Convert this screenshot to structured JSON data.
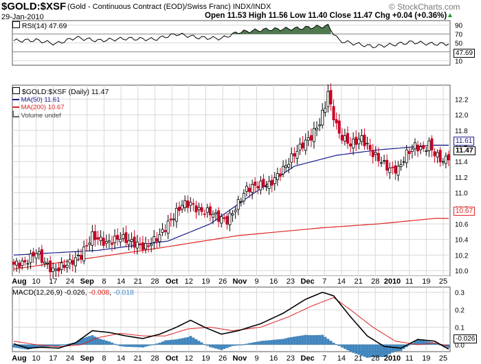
{
  "header": {
    "symbol": "$GOLD:$XSF",
    "description": "(Gold - Continuous Contract (EOD)/Swiss Franc) INDX/INDX",
    "watermark": "© StockCharts.com",
    "date": "29-Jan-2010",
    "ohlc": "Open 11.53  High 11.56  Low 11.40  Close 11.47  Chg +0.04 (+0.36%)",
    "change_arrow": "▲"
  },
  "colors": {
    "up": "#000000",
    "down": "#cc0022",
    "ma50": "#1a1a8c",
    "ma200": "#dd2222",
    "rsi_fill": "#4f7a4f",
    "macd_line": "#000000",
    "macd_signal": "#dd2222",
    "macd_hist": "#3f87c2",
    "grid": "#d8d8d8",
    "frame": "#555555"
  },
  "date_labels": [
    "Aug",
    "10",
    "17",
    "24",
    "Sep",
    "8",
    "14",
    "21",
    "28",
    "Oct",
    "12",
    "19",
    "26",
    "Nov",
    "9",
    "16",
    "23",
    "Dec",
    "7",
    "14",
    "21",
    "28",
    "2010",
    "11",
    "19",
    "25"
  ],
  "rsi": {
    "legend": "RSI(14) 47.69",
    "ticks": [
      "90",
      "70",
      "50",
      "30",
      "10"
    ],
    "last_label": "47.69"
  },
  "price": {
    "legend_main": "$GOLD:$XSF (Daily) 11.47",
    "legend_ma50": "MA(50) 11.61",
    "legend_ma200": "MA(200) 10.67",
    "legend_volume": "Volume undef",
    "ticks": [
      "12.2",
      "12.0",
      "11.8",
      "11.6",
      "11.4",
      "11.2",
      "11.0",
      "10.8",
      "10.6",
      "10.4",
      "10.2",
      "10.0"
    ],
    "tag_ma50": "11.61",
    "tag_close": "11.47",
    "tag_ma200": "10.67"
  },
  "macd": {
    "legend_prefix": "MACD(12,26,9)",
    "legend_macd": "-0.026",
    "legend_signal": "-0.008",
    "legend_hist": "-0.018",
    "ticks": [
      "0.3",
      "0.2",
      "0.1",
      "0.0"
    ],
    "last_label": "-0.026"
  },
  "chart_data": {
    "type": "candlestick",
    "title": "$GOLD:$XSF (Gold - Continuous Contract (EOD)/Swiss Franc) INDX/INDX",
    "price_ylim": [
      9.93,
      12.38
    ],
    "rsi_ylim": [
      0,
      100
    ],
    "macd_ylim": [
      -0.04,
      0.33
    ],
    "ma50_anchors": [
      [
        0,
        10.2
      ],
      [
        30,
        10.26
      ],
      [
        55,
        10.38
      ],
      [
        70,
        10.6
      ],
      [
        85,
        10.98
      ],
      [
        100,
        11.34
      ],
      [
        115,
        11.48
      ],
      [
        130,
        11.55
      ],
      [
        150,
        11.61
      ]
    ],
    "ma200_anchors": [
      [
        0,
        10.02
      ],
      [
        50,
        10.28
      ],
      [
        80,
        10.45
      ],
      [
        110,
        10.55
      ],
      [
        130,
        10.6
      ],
      [
        150,
        10.67
      ]
    ],
    "price_anchors": [
      [
        0,
        10.08
      ],
      [
        4,
        10.1
      ],
      [
        8,
        10.24
      ],
      [
        11,
        10.1
      ],
      [
        14,
        10.0
      ],
      [
        17,
        10.05
      ],
      [
        20,
        10.1
      ],
      [
        24,
        10.2
      ],
      [
        28,
        10.45
      ],
      [
        33,
        10.35
      ],
      [
        38,
        10.43
      ],
      [
        43,
        10.35
      ],
      [
        47,
        10.3
      ],
      [
        52,
        10.45
      ],
      [
        56,
        10.65
      ],
      [
        60,
        10.85
      ],
      [
        63,
        10.86
      ],
      [
        66,
        10.77
      ],
      [
        70,
        10.75
      ],
      [
        73,
        10.68
      ],
      [
        76,
        10.64
      ],
      [
        79,
        10.8
      ],
      [
        83,
        11.05
      ],
      [
        87,
        11.1
      ],
      [
        91,
        11.1
      ],
      [
        96,
        11.3
      ],
      [
        100,
        11.5
      ],
      [
        103,
        11.62
      ],
      [
        106,
        11.72
      ],
      [
        109,
        11.9
      ],
      [
        111,
        12.12
      ],
      [
        112,
        12.3
      ],
      [
        113,
        12.1
      ],
      [
        116,
        11.75
      ],
      [
        120,
        11.62
      ],
      [
        124,
        11.7
      ],
      [
        128,
        11.5
      ],
      [
        131,
        11.4
      ],
      [
        134,
        11.3
      ],
      [
        137,
        11.3
      ],
      [
        140,
        11.5
      ],
      [
        143,
        11.6
      ],
      [
        146,
        11.55
      ],
      [
        148,
        11.62
      ],
      [
        150,
        11.5
      ],
      [
        153,
        11.4
      ],
      [
        155,
        11.47
      ]
    ],
    "rsi_anchors": [
      [
        0,
        55
      ],
      [
        8,
        56
      ],
      [
        15,
        48
      ],
      [
        22,
        62
      ],
      [
        30,
        55
      ],
      [
        40,
        60
      ],
      [
        50,
        58
      ],
      [
        58,
        70
      ],
      [
        66,
        62
      ],
      [
        74,
        60
      ],
      [
        80,
        74
      ],
      [
        90,
        80
      ],
      [
        100,
        82
      ],
      [
        108,
        86
      ],
      [
        112,
        88
      ],
      [
        116,
        55
      ],
      [
        120,
        50
      ],
      [
        128,
        42
      ],
      [
        135,
        46
      ],
      [
        142,
        52
      ],
      [
        148,
        48
      ],
      [
        155,
        47.69
      ]
    ],
    "macd_anchors": [
      [
        0,
        0.005
      ],
      [
        5,
        -0.02
      ],
      [
        10,
        -0.015
      ],
      [
        16,
        -0.02
      ],
      [
        22,
        0.01
      ],
      [
        28,
        0.08
      ],
      [
        34,
        0.07
      ],
      [
        40,
        0.05
      ],
      [
        46,
        0.035
      ],
      [
        52,
        0.06
      ],
      [
        58,
        0.1
      ],
      [
        63,
        0.14
      ],
      [
        68,
        0.1
      ],
      [
        74,
        0.06
      ],
      [
        80,
        0.08
      ],
      [
        88,
        0.12
      ],
      [
        96,
        0.18
      ],
      [
        104,
        0.26
      ],
      [
        110,
        0.3
      ],
      [
        114,
        0.28
      ],
      [
        120,
        0.16
      ],
      [
        126,
        0.05
      ],
      [
        132,
        -0.01
      ],
      [
        138,
        -0.02
      ],
      [
        144,
        0.03
      ],
      [
        150,
        0.02
      ],
      [
        155,
        -0.026
      ]
    ],
    "signal_anchors": [
      [
        0,
        0.02
      ],
      [
        8,
        0.0
      ],
      [
        16,
        -0.012
      ],
      [
        24,
        0.0
      ],
      [
        30,
        0.04
      ],
      [
        38,
        0.065
      ],
      [
        46,
        0.05
      ],
      [
        54,
        0.05
      ],
      [
        62,
        0.09
      ],
      [
        70,
        0.1
      ],
      [
        78,
        0.08
      ],
      [
        88,
        0.1
      ],
      [
        98,
        0.16
      ],
      [
        106,
        0.22
      ],
      [
        114,
        0.27
      ],
      [
        120,
        0.2
      ],
      [
        128,
        0.1
      ],
      [
        136,
        0.02
      ],
      [
        144,
        0.0
      ],
      [
        150,
        0.01
      ],
      [
        155,
        -0.008
      ]
    ]
  }
}
